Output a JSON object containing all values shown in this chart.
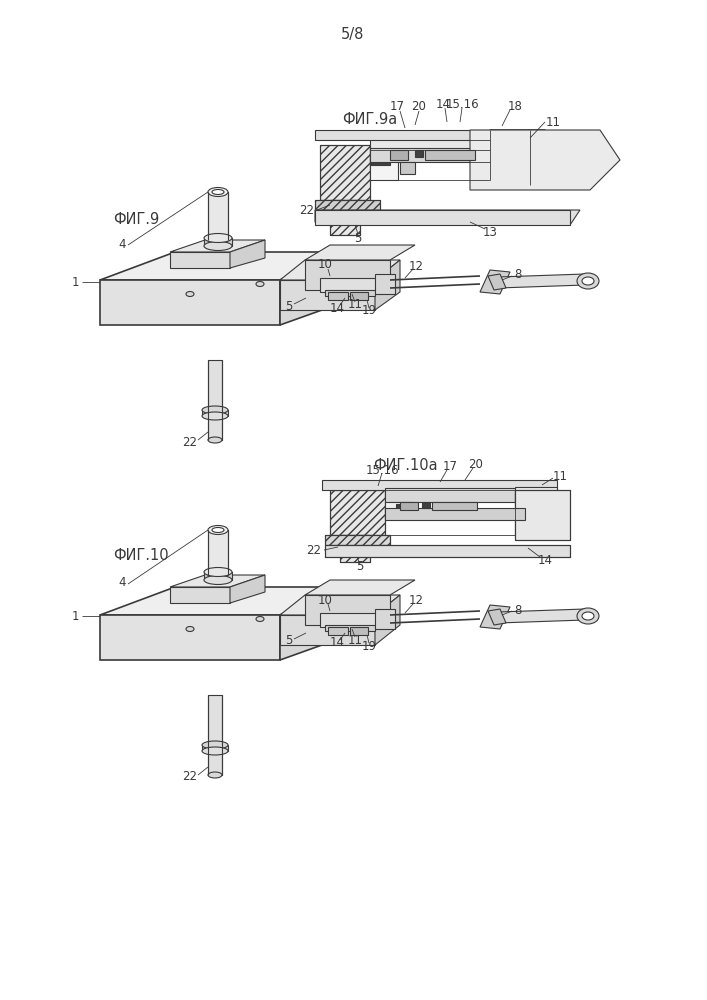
{
  "page_number": "5/8",
  "background_color": "#ffffff",
  "line_color": "#3a3a3a",
  "fig9a_label": "ФИГ.9а",
  "fig9_label": "ФИГ.9",
  "fig10a_label": "ФИГ.10а",
  "fig10_label": "ФИГ.10",
  "title_fontsize": 10.5,
  "label_fontsize": 8.5,
  "page_num_fontsize": 10.5,
  "hatch_color": "#3a3a3a",
  "fill_light": "#f0f0f0",
  "fill_mid": "#e0e0e0",
  "fill_dark": "#c8c8c8",
  "fill_vdark": "#404040"
}
